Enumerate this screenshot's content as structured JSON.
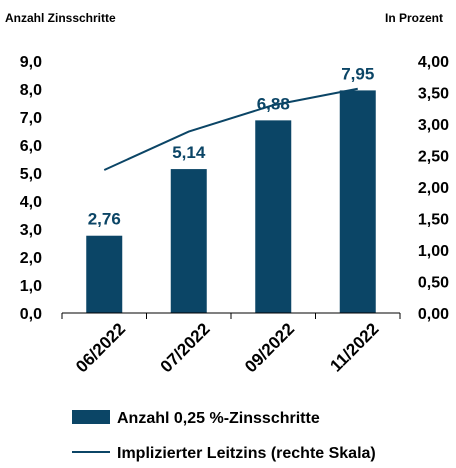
{
  "colors": {
    "bar": "#0b4566",
    "line": "#0b4566",
    "label": "#0b4566",
    "text": "#000000"
  },
  "chart_data": {
    "type": "bar",
    "left_axis_title": "Anzahl Zinsschritte",
    "right_axis_title": "In Prozent",
    "categories": [
      "06/2022",
      "07/2022",
      "09/2022",
      "11/2022"
    ],
    "left_ylim": [
      0,
      9
    ],
    "left_ticks": [
      "0,0",
      "1,0",
      "2,0",
      "3,0",
      "4,0",
      "5,0",
      "6,0",
      "7,0",
      "8,0",
      "9,0"
    ],
    "right_ylim": [
      0,
      4
    ],
    "right_ticks": [
      "0,00",
      "0,50",
      "1,00",
      "1,50",
      "2,00",
      "2,50",
      "3,00",
      "3,50",
      "4,00"
    ],
    "grid": false,
    "legend_position": "bottom",
    "series": [
      {
        "name": "Anzahl 0,25 %-Zinsschritte",
        "type": "bar",
        "axis": "left",
        "values": [
          2.76,
          5.14,
          6.88,
          7.95
        ],
        "labels": [
          "2,76",
          "5,14",
          "6,88",
          "7,95"
        ]
      },
      {
        "name": "Implizierter Leitzins (rechte Skala)",
        "type": "line",
        "axis": "right",
        "values": [
          2.27,
          2.88,
          3.3,
          3.56
        ]
      }
    ]
  }
}
